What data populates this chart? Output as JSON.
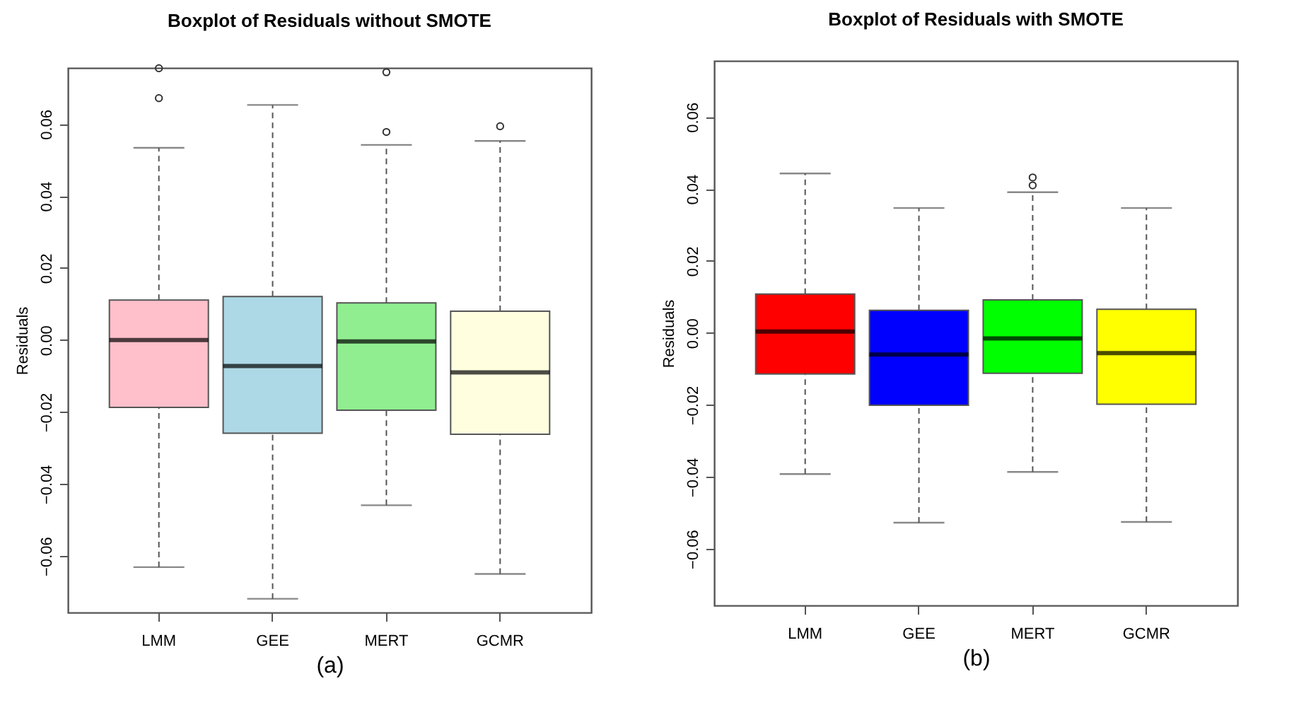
{
  "chart_data": [
    {
      "type": "box",
      "title": "Boxplot of Residuals without SMOTE",
      "ylabel": "Residuals",
      "annotations": [
        "(a)"
      ],
      "categories": [
        "LMM",
        "GEE",
        "MERT",
        "GCMR"
      ],
      "colors": [
        "#ffc0cb",
        "#add8e6",
        "#90ee90",
        "#ffffe0"
      ],
      "boxes": [
        {
          "low": -0.0631,
          "q1": -0.0187,
          "median": 0.0,
          "q3": 0.0111,
          "high": 0.0534,
          "outliers": [
            0.0672,
            0.0755
          ]
        },
        {
          "low": -0.0719,
          "q1": -0.0259,
          "median": -0.0072,
          "q3": 0.0121,
          "high": 0.0653
        },
        {
          "low": -0.0459,
          "q1": -0.0195,
          "median": -0.0004,
          "q3": 0.0103,
          "high": 0.0542,
          "outliers": [
            0.0578,
            0.0744
          ]
        },
        {
          "low": -0.065,
          "q1": -0.0262,
          "median": -0.009,
          "q3": 0.008,
          "high": 0.0553,
          "outliers": [
            0.0594
          ]
        }
      ],
      "ylim": [
        -0.0757,
        0.0756
      ],
      "yticks": [
        -0.06,
        -0.04,
        -0.02,
        {
          "value": 0,
          "label": "0.00"
        },
        0.02,
        0.04,
        0.06
      ]
    },
    {
      "type": "box",
      "title": "Boxplot of Residuals with SMOTE",
      "ylabel": "Residuals",
      "annotations": [
        "(b)"
      ],
      "categories": [
        "LMM",
        "GEE",
        "MERT",
        "GCMR"
      ],
      "colors": [
        "#ff0000",
        "#0000ff",
        "#00ff00",
        "#ffff00"
      ],
      "boxes": [
        {
          "low": -0.0392,
          "q1": -0.0114,
          "median": 0.0004,
          "q3": 0.0108,
          "high": 0.0443
        },
        {
          "low": -0.0527,
          "q1": -0.0201,
          "median": -0.006,
          "q3": 0.0063,
          "high": 0.0347
        },
        {
          "low": -0.0386,
          "q1": -0.0112,
          "median": -0.0015,
          "q3": 0.0092,
          "high": 0.0391,
          "outliers": [
            0.041,
            0.0432
          ]
        },
        {
          "low": -0.0525,
          "q1": -0.0198,
          "median": -0.0056,
          "q3": 0.0066,
          "high": 0.0347
        }
      ],
      "ylim": [
        -0.0757,
        0.0756
      ],
      "yticks": [
        -0.06,
        -0.04,
        -0.02,
        {
          "value": 0,
          "label": "0.00"
        },
        0.02,
        0.04,
        0.06
      ]
    }
  ]
}
